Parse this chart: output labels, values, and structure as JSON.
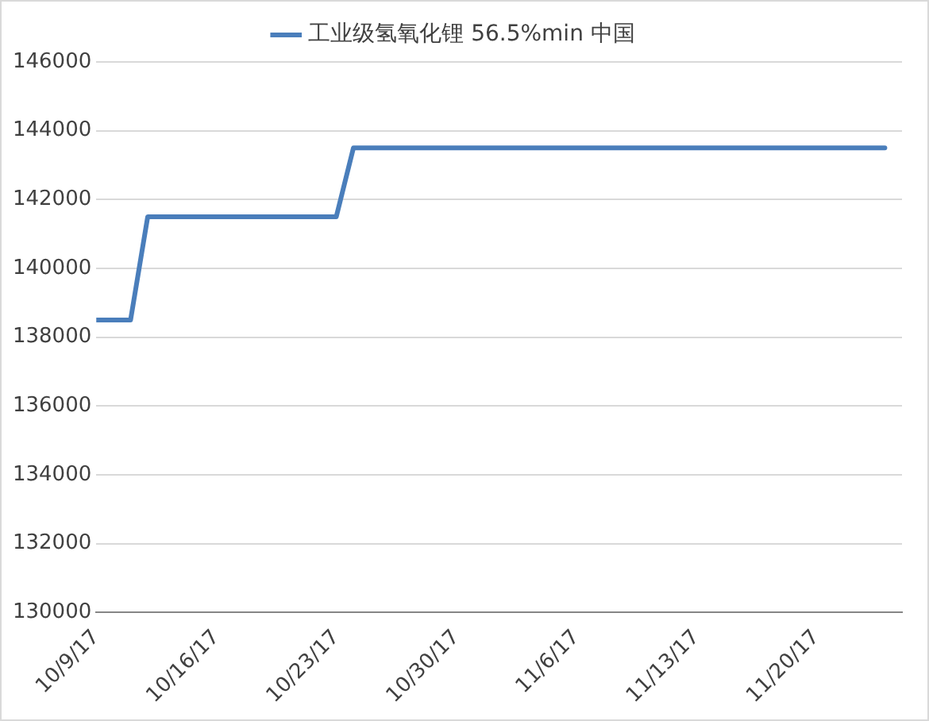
{
  "chart_data": {
    "type": "line",
    "legend": "top",
    "grid": "y",
    "marker": "none",
    "line_style": "solid",
    "x": [
      "--10-09",
      "--10-11",
      "--10-12",
      "--10-23",
      "--10-24",
      "--11-24"
    ],
    "series": [
      {
        "name": "工业级氢氧化锂 56.5%min 中国",
        "color": "#4a7ebb",
        "values": [
          138500,
          138500,
          141500,
          141500,
          143500,
          143500
        ]
      }
    ],
    "xlim": [
      "--10-09",
      "--11-25"
    ],
    "xticks": [
      {
        "value": "--10-09",
        "label": "10/9/17"
      },
      {
        "value": "--10-16",
        "label": "10/16/17"
      },
      {
        "value": "--10-23",
        "label": "10/23/17"
      },
      {
        "value": "--10-30",
        "label": "10/30/17"
      },
      {
        "value": "--11-06",
        "label": "11/6/17"
      },
      {
        "value": "--11-13",
        "label": "11/13/17"
      },
      {
        "value": "--11-20",
        "label": "11/20/17"
      }
    ],
    "ylim": [
      130000,
      146000
    ],
    "yticks": [
      130000,
      132000,
      134000,
      136000,
      138000,
      140000,
      142000,
      144000,
      146000
    ]
  }
}
